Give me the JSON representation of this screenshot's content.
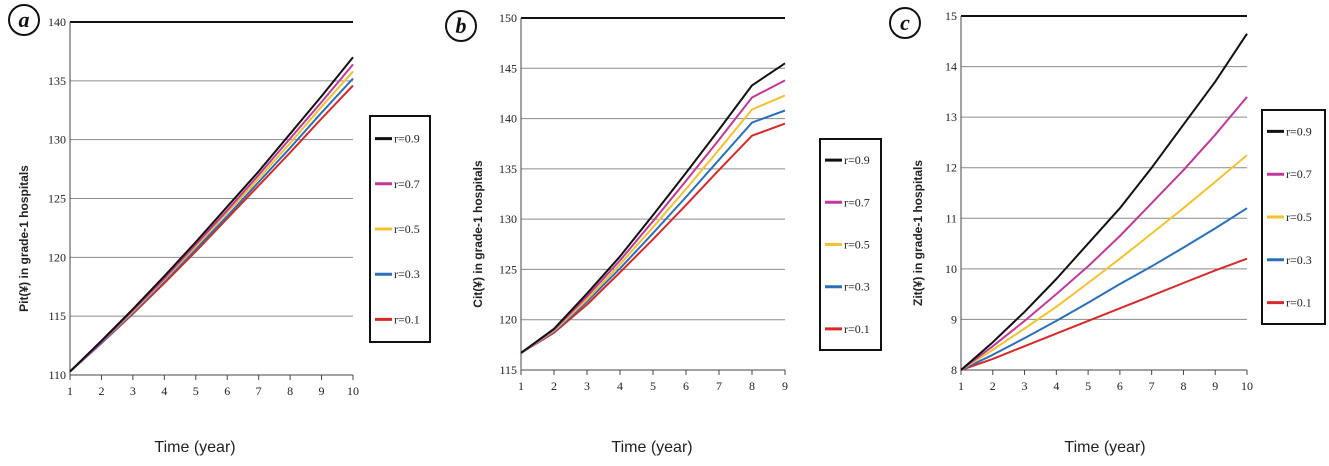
{
  "colors": {
    "r=0.9": "#111111",
    "r=0.7": "#c0389a",
    "r=0.5": "#f1c232",
    "r=0.3": "#2a6fb8",
    "r=0.1": "#d42a2a"
  },
  "chart_data": [
    {
      "type": "line",
      "panel_label": "a",
      "xlabel": "Time (year)",
      "ylabel": "Pit(¥) in grade-1 hospitals",
      "x": [
        1,
        2,
        3,
        4,
        5,
        6,
        7,
        8,
        9,
        10
      ],
      "xticks": [
        "1",
        "2",
        "3",
        "4",
        "5",
        "6",
        "7",
        "8",
        "9",
        "10"
      ],
      "ylim": [
        110,
        140
      ],
      "yticks": [
        "110",
        "115",
        "120",
        "125",
        "130",
        "135",
        "140"
      ],
      "grid": true,
      "legend": "right",
      "series": [
        {
          "name": "r=0.9",
          "values": [
            110.3,
            112.9,
            115.6,
            118.4,
            121.3,
            124.3,
            127.3,
            130.5,
            133.7,
            137.0
          ]
        },
        {
          "name": "r=0.7",
          "values": [
            110.3,
            112.8,
            115.5,
            118.2,
            121.1,
            124.0,
            127.0,
            130.1,
            133.2,
            136.4
          ]
        },
        {
          "name": "r=0.5",
          "values": [
            110.3,
            112.8,
            115.4,
            118.1,
            120.9,
            123.8,
            126.7,
            129.7,
            132.8,
            135.8
          ]
        },
        {
          "name": "r=0.3",
          "values": [
            110.3,
            112.7,
            115.3,
            118.0,
            120.7,
            123.5,
            126.4,
            129.3,
            132.3,
            135.2
          ]
        },
        {
          "name": "r=0.1",
          "values": [
            110.3,
            112.7,
            115.2,
            117.8,
            120.5,
            123.3,
            126.1,
            128.9,
            131.8,
            134.6
          ]
        }
      ]
    },
    {
      "type": "line",
      "panel_label": "b",
      "xlabel": "Time (year)",
      "ylabel": "Cit(¥) in grade-1 hospitals",
      "x": [
        1,
        2,
        3,
        4,
        5,
        6,
        7,
        8,
        9
      ],
      "xticks": [
        "1",
        "2",
        "3",
        "4",
        "5",
        "6",
        "7",
        "8",
        "9"
      ],
      "ylim": [
        115,
        150
      ],
      "yticks": [
        "115",
        "120",
        "125",
        "130",
        "135",
        "140",
        "145",
        "150"
      ],
      "grid": true,
      "legend": "right",
      "series": [
        {
          "name": "r=0.9",
          "values": [
            116.7,
            119.1,
            122.6,
            126.3,
            130.4,
            134.6,
            138.9,
            143.3,
            145.5
          ]
        },
        {
          "name": "r=0.7",
          "values": [
            116.7,
            119.0,
            122.3,
            125.9,
            129.8,
            133.8,
            137.9,
            142.1,
            143.8
          ]
        },
        {
          "name": "r=0.5",
          "values": [
            116.7,
            118.9,
            122.0,
            125.5,
            129.2,
            133.0,
            136.9,
            140.9,
            142.3
          ]
        },
        {
          "name": "r=0.3",
          "values": [
            116.7,
            118.8,
            121.8,
            125.1,
            128.6,
            132.2,
            135.9,
            139.6,
            140.8
          ]
        },
        {
          "name": "r=0.1",
          "values": [
            116.7,
            118.7,
            121.5,
            124.7,
            128.0,
            131.4,
            134.9,
            138.3,
            139.5
          ]
        }
      ]
    },
    {
      "type": "line",
      "panel_label": "c",
      "xlabel": "Time (year)",
      "ylabel": "Zit(¥) in grade-1 hospitals",
      "x": [
        1,
        2,
        3,
        4,
        5,
        6,
        7,
        8,
        9,
        10
      ],
      "xticks": [
        "1",
        "2",
        "3",
        "4",
        "5",
        "6",
        "7",
        "8",
        "9",
        "10"
      ],
      "ylim": [
        8,
        15
      ],
      "yticks": [
        "8",
        "9",
        "10",
        "11",
        "12",
        "13",
        "14",
        "15"
      ],
      "grid": true,
      "legend": "right",
      "series": [
        {
          "name": "r=0.9",
          "values": [
            8.0,
            8.55,
            9.15,
            9.8,
            10.5,
            11.2,
            12.0,
            12.85,
            13.7,
            14.65
          ]
        },
        {
          "name": "r=0.7",
          "values": [
            8.0,
            8.47,
            8.97,
            9.5,
            10.05,
            10.65,
            11.3,
            11.95,
            12.65,
            13.4
          ]
        },
        {
          "name": "r=0.5",
          "values": [
            8.0,
            8.4,
            8.82,
            9.25,
            9.72,
            10.2,
            10.7,
            11.2,
            11.72,
            12.25
          ]
        },
        {
          "name": "r=0.3",
          "values": [
            8.0,
            8.3,
            8.63,
            8.97,
            9.33,
            9.7,
            10.05,
            10.42,
            10.8,
            11.2
          ]
        },
        {
          "name": "r=0.1",
          "values": [
            8.0,
            8.22,
            8.47,
            8.72,
            8.97,
            9.22,
            9.47,
            9.72,
            9.97,
            10.2
          ]
        }
      ]
    }
  ]
}
